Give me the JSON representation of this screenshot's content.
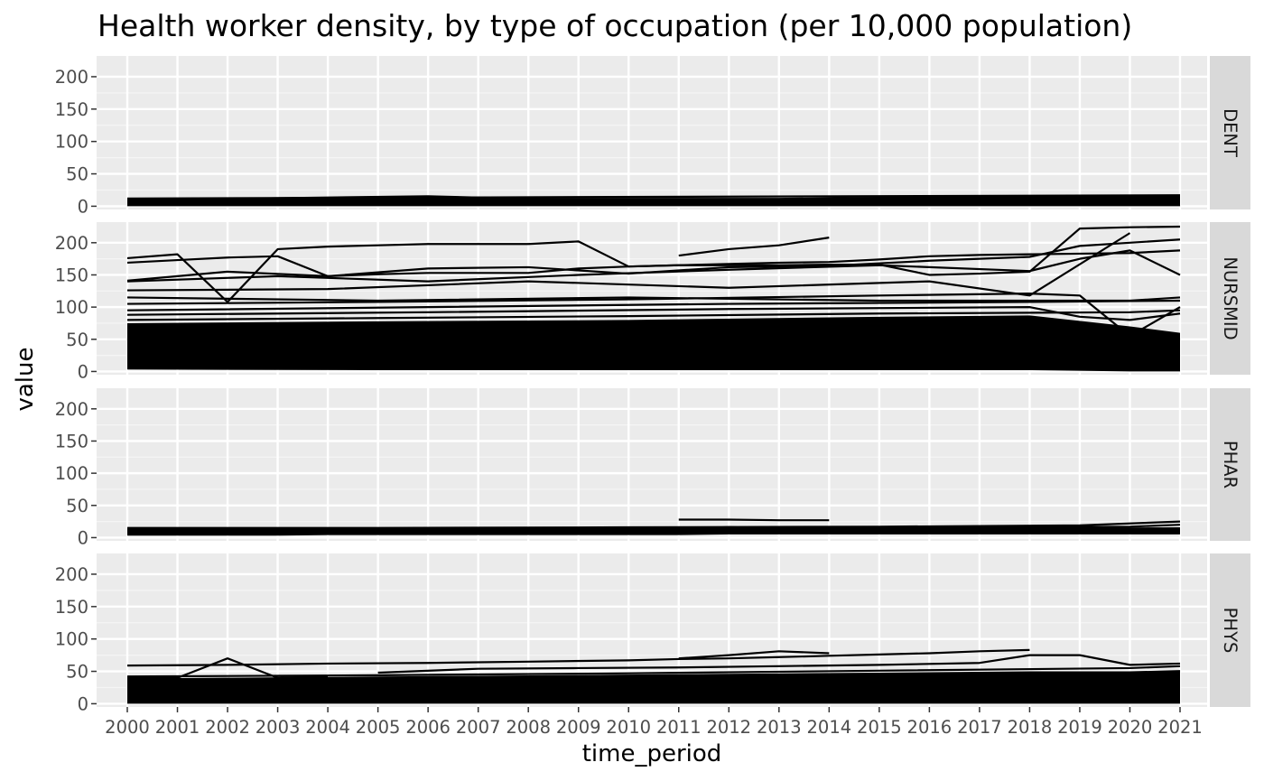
{
  "chart_data": {
    "type": "line",
    "title": "Health worker density, by type of occupation (per 10,000 population)",
    "xlabel": "time_period",
    "ylabel": "value",
    "x_categories": [
      "2000",
      "2001",
      "2002",
      "2003",
      "2004",
      "2005",
      "2006",
      "2007",
      "2008",
      "2009",
      "2010",
      "2011",
      "2012",
      "2013",
      "2014",
      "2015",
      "2016",
      "2017",
      "2018",
      "2019",
      "2020",
      "2021"
    ],
    "ylim": [
      -5,
      232
    ],
    "y_ticks": [
      0,
      50,
      100,
      150,
      200
    ],
    "y_tick_labels": [
      "0",
      "50",
      "100",
      "150",
      "200"
    ],
    "grid": true,
    "facets": [
      {
        "label": "DENT",
        "filled_band": {
          "x": [
            2000,
            2006,
            2008,
            2013,
            2018,
            2021
          ],
          "lower": [
            0,
            0,
            0,
            0,
            0,
            0
          ],
          "upper": [
            11,
            17,
            13,
            13,
            17,
            17
          ]
        },
        "series": [
          {
            "x": [
              2000,
              2021
            ],
            "y": [
              12,
              17
            ]
          }
        ]
      },
      {
        "label": "NURSMID",
        "filled_band": {
          "x": [
            2000,
            2005,
            2010,
            2015,
            2018,
            2020,
            2021
          ],
          "lower": [
            3,
            2,
            2,
            2,
            2,
            0,
            0
          ],
          "upper": [
            75,
            78,
            80,
            85,
            87,
            70,
            60
          ]
        },
        "series": [
          {
            "x": [
              2000,
              2001,
              2002,
              2003,
              2004,
              2005,
              2006,
              2007,
              2008,
              2009,
              2010,
              2011,
              2012,
              2013,
              2014,
              2015,
              2016,
              2017,
              2018,
              2019,
              2020,
              2021
            ],
            "y": [
              176,
              182,
              108,
              190,
              194,
              196,
              198,
              198,
              198,
              202,
              163,
              165,
              167,
              169,
              170,
              174,
              179,
              181,
              182,
              183,
              184,
              188
            ]
          },
          {
            "x": [
              2000,
              2001,
              2002,
              2003,
              2004,
              2005,
              2006,
              2007,
              2008,
              2009,
              2010,
              2011,
              2012,
              2013,
              2014,
              2015,
              2016,
              2017,
              2018,
              2019,
              2020,
              2021
            ],
            "y": [
              169,
              173,
              177,
              179,
              148,
              151,
              153,
              153,
              153,
              160,
              163,
              165,
              165,
              165,
              166,
              166,
              150,
              152,
              155,
              222,
              224,
              225
            ]
          },
          {
            "x": [
              2000,
              2002,
              2004,
              2006,
              2008,
              2010,
              2012,
              2014,
              2016,
              2018,
              2019,
              2020,
              2021
            ],
            "y": [
              141,
              155,
              148,
              160,
              162,
              152,
              162,
              164,
              172,
              178,
              195,
              200,
              205
            ]
          },
          {
            "x": [
              2011,
              2012,
              2013,
              2014
            ],
            "y": [
              180,
              190,
              196,
              208
            ]
          },
          {
            "x": [
              2000,
              2003,
              2006,
              2009,
              2012,
              2015,
              2018,
              2019,
              2020,
              2021
            ],
            "y": [
              140,
              148,
              140,
              150,
              158,
              165,
              156,
              175,
              188,
              150
            ]
          },
          {
            "x": [
              2000,
              2004,
              2008,
              2012,
              2016,
              2018,
              2020
            ],
            "y": [
              126,
              128,
              140,
              130,
              140,
              118,
              215
            ]
          },
          {
            "x": [
              2000,
              2005,
              2010,
              2015,
              2020,
              2021
            ],
            "y": [
              115,
              110,
              115,
              110,
              110,
              115
            ]
          },
          {
            "x": [
              2000,
              2005,
              2010,
              2015,
              2018,
              2019,
              2020,
              2021
            ],
            "y": [
              105,
              108,
              112,
              118,
              121,
              118,
              55,
              100
            ]
          },
          {
            "x": [
              2000,
              2006,
              2012,
              2018,
              2021
            ],
            "y": [
              95,
              100,
              105,
              108,
              110
            ]
          },
          {
            "x": [
              2000,
              2006,
              2012,
              2018,
              2019,
              2020,
              2021
            ],
            "y": [
              88,
              92,
              97,
              100,
              85,
              80,
              90
            ]
          },
          {
            "x": [
              2000,
              2005,
              2010,
              2015,
              2020,
              2021
            ],
            "y": [
              80,
              83,
              86,
              90,
              92,
              95
            ]
          }
        ]
      },
      {
        "label": "PHAR",
        "filled_band": {
          "x": [
            2000,
            2003,
            2004,
            2011,
            2012,
            2013,
            2021
          ],
          "lower": [
            3,
            3,
            4,
            4,
            5,
            5,
            5
          ],
          "upper": [
            14,
            15,
            12,
            14,
            18,
            15,
            16
          ]
        },
        "series": [
          {
            "x": [
              2011,
              2012,
              2013,
              2014
            ],
            "y": [
              28,
              28,
              27,
              27
            ]
          },
          {
            "x": [
              2000,
              2005,
              2010,
              2015,
              2019,
              2020,
              2021
            ],
            "y": [
              15,
              15,
              16,
              17,
              19,
              22,
              25
            ]
          },
          {
            "x": [
              2000,
              2005,
              2010,
              2015,
              2020,
              2021
            ],
            "y": [
              12,
              13,
              14,
              15,
              17,
              20
            ]
          }
        ]
      },
      {
        "label": "PHYS",
        "filled_band": {
          "x": [
            2000,
            2005,
            2010,
            2015,
            2018,
            2020,
            2021
          ],
          "lower": [
            0,
            0,
            0,
            0,
            0,
            0,
            0
          ],
          "upper": [
            39,
            42,
            45,
            48,
            50,
            50,
            52
          ]
        },
        "series": [
          {
            "x": [
              2000,
              2002,
              2004,
              2006,
              2008,
              2010,
              2011,
              2012,
              2013,
              2014,
              2015,
              2016,
              2017,
              2018
            ],
            "y": [
              59,
              60,
              62,
              63,
              65,
              67,
              69,
              70,
              72,
              74,
              76,
              78,
              81,
              83
            ]
          },
          {
            "x": [
              2011,
              2012,
              2013,
              2014
            ],
            "y": [
              70,
              75,
              81,
              78
            ]
          },
          {
            "x": [
              2000,
              2001,
              2002,
              2003,
              2004
            ],
            "y": [
              40,
              40,
              70,
              40,
              42
            ]
          },
          {
            "x": [
              2005,
              2007,
              2009,
              2011,
              2013,
              2015,
              2017,
              2018,
              2019,
              2020,
              2021
            ],
            "y": [
              48,
              54,
              55,
              56,
              58,
              60,
              63,
              75,
              75,
              60,
              62
            ]
          },
          {
            "x": [
              2000,
              2005,
              2010,
              2015,
              2020,
              2021
            ],
            "y": [
              42,
              44,
              47,
              51,
              55,
              58
            ]
          }
        ]
      }
    ]
  }
}
